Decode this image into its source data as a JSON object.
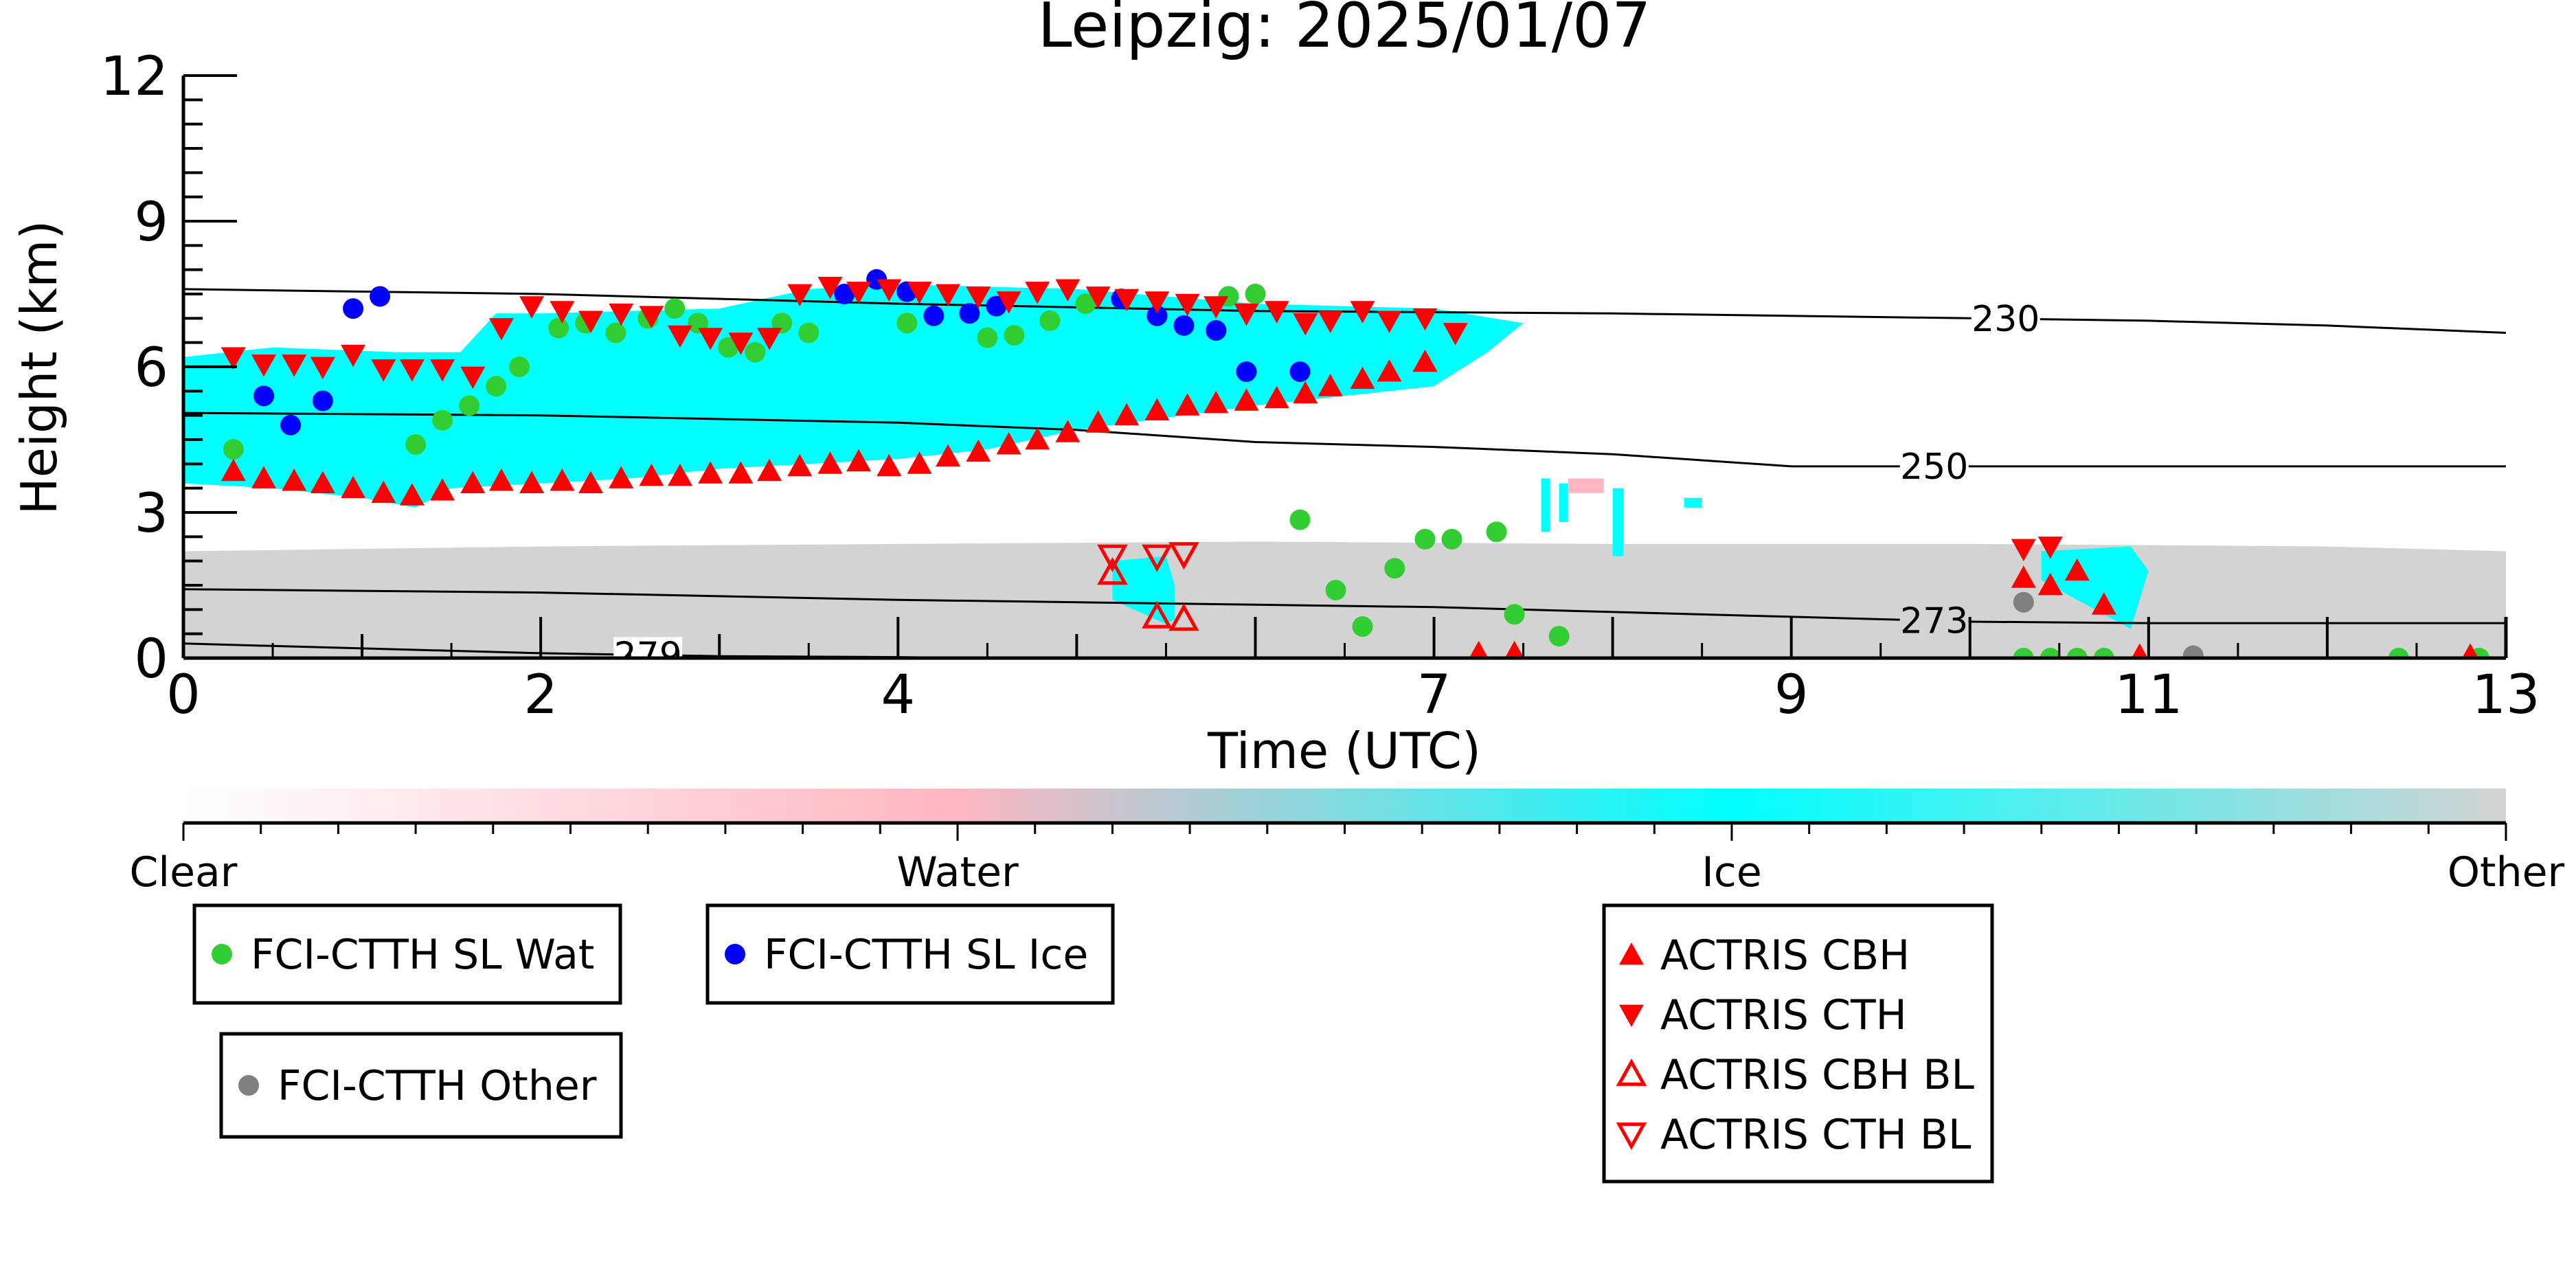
{
  "chart_data": {
    "type": "scatter",
    "title": "Leipzig: 2025/01/07",
    "xlabel": "Time (UTC)",
    "ylabel": "Height (km)",
    "xlim": [
      0,
      13
    ],
    "ylim": [
      0,
      12
    ],
    "x_ticks": [
      0,
      2,
      4,
      7,
      9,
      11,
      13
    ],
    "y_ticks": [
      0,
      3,
      6,
      9,
      12
    ],
    "colorbar": {
      "labels": [
        "Clear",
        "Water",
        "Ice",
        "Other"
      ],
      "colors": [
        "#ffffff",
        "#ffb6c1",
        "#00ffff",
        "#d3d3d3"
      ]
    },
    "contours": [
      {
        "label": "230",
        "x": [
          0,
          2,
          4,
          6,
          8,
          10,
          11,
          12,
          13
        ],
        "y": [
          7.6,
          7.5,
          7.3,
          7.15,
          7.1,
          7.0,
          6.95,
          6.85,
          6.7
        ]
      },
      {
        "label": "250",
        "x": [
          0,
          2,
          4,
          5,
          6,
          7,
          8,
          9,
          10,
          11,
          12,
          13
        ],
        "y": [
          5.05,
          5.0,
          4.85,
          4.7,
          4.45,
          4.35,
          4.2,
          3.95,
          3.95,
          3.95,
          3.95,
          3.95
        ]
      },
      {
        "label": "273",
        "x": [
          0,
          2,
          4,
          6,
          7,
          8,
          9,
          10,
          11,
          12,
          13
        ],
        "y": [
          1.42,
          1.35,
          1.2,
          1.1,
          1.05,
          0.95,
          0.85,
          0.75,
          0.72,
          0.72,
          0.72
        ]
      },
      {
        "label": "279",
        "x": [
          0,
          1,
          2,
          3,
          4,
          4.5
        ],
        "y": [
          0.3,
          0.2,
          0.1,
          0.04,
          0.02,
          0.0
        ]
      }
    ],
    "cloud_regions": [
      {
        "class": "Other",
        "color": "#d3d3d3",
        "x": [
          0,
          1,
          2,
          4,
          6,
          8,
          10,
          12,
          13,
          13,
          0
        ],
        "y": [
          2.2,
          2.25,
          2.3,
          2.35,
          2.4,
          2.35,
          2.35,
          2.3,
          2.2,
          0,
          0
        ]
      },
      {
        "class": "Ice",
        "color": "#00ffff",
        "x": [
          0,
          0.5,
          1.2,
          1.55,
          1.75,
          2,
          3,
          3.5,
          4,
          5,
          6,
          7,
          7.5,
          7.3,
          7,
          6,
          5,
          4.5,
          4,
          3.5,
          3,
          2.5,
          2,
          1.5,
          1.3,
          1,
          0.5,
          0
        ],
        "y": [
          6.2,
          6.4,
          6.3,
          6.3,
          7.1,
          7.1,
          7.2,
          7.6,
          7.7,
          7.6,
          7.3,
          7.2,
          6.9,
          6.3,
          5.6,
          5.2,
          4.7,
          4.3,
          4.1,
          4.0,
          3.9,
          3.7,
          3.6,
          3.5,
          3.1,
          3.3,
          3.5,
          3.6
        ]
      },
      {
        "class": "Ice",
        "color": "#00ffff",
        "x": [
          5.2,
          5.5,
          5.55,
          5.55,
          5.5,
          5.2
        ],
        "y": [
          2.0,
          2.1,
          1.5,
          0.8,
          0.7,
          1.2
        ]
      },
      {
        "class": "Ice",
        "color": "#00ffff",
        "x": [
          10.4,
          10.9,
          11.0,
          10.9,
          10.4
        ],
        "y": [
          2.2,
          2.3,
          1.8,
          0.6,
          1.6
        ]
      },
      {
        "class": "Ice",
        "color": "#00ffff",
        "x": [
          7.6,
          7.65,
          7.65,
          7.6
        ],
        "y": [
          3.7,
          3.7,
          2.6,
          2.6
        ]
      },
      {
        "class": "Ice",
        "color": "#00ffff",
        "x": [
          7.7,
          7.75,
          7.75,
          7.7
        ],
        "y": [
          3.6,
          3.6,
          2.8,
          2.8
        ]
      },
      {
        "class": "Ice",
        "color": "#00ffff",
        "x": [
          8.0,
          8.06,
          8.06,
          8.0
        ],
        "y": [
          3.5,
          3.5,
          2.1,
          2.1
        ]
      },
      {
        "class": "Ice",
        "color": "#00ffff",
        "x": [
          8.4,
          8.5,
          8.5,
          8.4
        ],
        "y": [
          3.3,
          3.3,
          3.1,
          3.1
        ]
      },
      {
        "class": "Water",
        "color": "#ffb6c1",
        "x": [
          7.75,
          7.95,
          7.95,
          7.75
        ],
        "y": [
          3.7,
          3.7,
          3.4,
          3.4
        ]
      }
    ],
    "series": [
      {
        "name": "FCI-CTTH SL Wat",
        "marker": "circle",
        "color": "#32cd32",
        "x": [
          0.28,
          1.3,
          1.45,
          1.6,
          1.75,
          1.88,
          2.1,
          2.25,
          2.42,
          2.6,
          2.75,
          2.88,
          3.05,
          3.2,
          3.35,
          3.5,
          4.05,
          4.5,
          4.65,
          4.85,
          5.05,
          5.85,
          6.0,
          6.25,
          6.45,
          6.6,
          6.78,
          6.95,
          7.1,
          7.35,
          7.45,
          7.7,
          10.3,
          10.45,
          10.6,
          10.75,
          12.4,
          12.85
        ],
        "y": [
          4.3,
          4.4,
          4.9,
          5.2,
          5.6,
          6.0,
          6.8,
          6.9,
          6.7,
          7.0,
          7.2,
          6.9,
          6.4,
          6.3,
          6.9,
          6.7,
          6.9,
          6.6,
          6.65,
          6.95,
          7.3,
          7.45,
          7.5,
          2.85,
          1.4,
          0.65,
          1.85,
          2.45,
          2.45,
          2.6,
          0.9,
          0.45,
          0,
          0,
          0,
          0,
          0,
          0
        ]
      },
      {
        "name": "FCI-CTTH SL Ice",
        "marker": "circle",
        "color": "#0000ff",
        "x": [
          0.45,
          0.6,
          0.78,
          0.95,
          1.1,
          3.7,
          3.88,
          4.05,
          4.2,
          4.4,
          4.55,
          5.25,
          5.45,
          5.6,
          5.78,
          5.95,
          6.25
        ],
        "y": [
          5.4,
          4.8,
          5.3,
          7.2,
          7.45,
          7.5,
          7.8,
          7.55,
          7.05,
          7.1,
          7.25,
          7.4,
          7.05,
          6.85,
          6.75,
          5.9,
          5.9
        ],
        "note": "y-values listed as read from marker centres"
      },
      {
        "name": "FCI-CTTH Other",
        "marker": "circle",
        "color": "#808080",
        "x": [
          10.3,
          11.25
        ],
        "y": [
          1.15,
          0.05
        ]
      },
      {
        "name": "ACTRIS CBH",
        "marker": "triangle-up",
        "color": "#ff0000",
        "x": [
          0.28,
          0.45,
          0.62,
          0.78,
          0.95,
          1.12,
          1.28,
          1.45,
          1.62,
          1.78,
          1.95,
          2.12,
          2.28,
          2.45,
          2.62,
          2.78,
          2.95,
          3.12,
          3.28,
          3.45,
          3.62,
          3.78,
          3.95,
          4.12,
          4.28,
          4.45,
          4.62,
          4.78,
          4.95,
          5.12,
          5.28,
          5.45,
          5.62,
          5.78,
          5.95,
          6.12,
          6.28,
          6.42,
          6.6,
          6.75,
          6.95,
          7.25,
          7.45,
          10.3,
          10.45,
          10.6,
          10.75,
          10.95,
          12.8
        ],
        "y": [
          3.85,
          3.7,
          3.65,
          3.6,
          3.5,
          3.4,
          3.35,
          3.45,
          3.6,
          3.65,
          3.6,
          3.65,
          3.6,
          3.7,
          3.75,
          3.75,
          3.8,
          3.8,
          3.85,
          3.95,
          4.0,
          4.05,
          3.95,
          4.0,
          4.15,
          4.25,
          4.4,
          4.5,
          4.65,
          4.85,
          5.0,
          5.1,
          5.2,
          5.25,
          5.3,
          5.35,
          5.45,
          5.6,
          5.75,
          5.9,
          6.1,
          0.1,
          0.1,
          1.65,
          1.5,
          1.8,
          1.1,
          0.05,
          0.05
        ]
      },
      {
        "name": "ACTRIS CTH",
        "marker": "triangle-down",
        "color": "#ff0000",
        "x": [
          0.28,
          0.45,
          0.62,
          0.78,
          0.95,
          1.12,
          1.28,
          1.45,
          1.62,
          1.78,
          1.95,
          2.12,
          2.28,
          2.45,
          2.62,
          2.78,
          2.95,
          3.12,
          3.28,
          3.45,
          3.62,
          3.78,
          3.95,
          4.12,
          4.28,
          4.45,
          4.62,
          4.78,
          4.95,
          5.12,
          5.28,
          5.45,
          5.62,
          5.78,
          5.95,
          6.12,
          6.28,
          6.42,
          6.6,
          6.75,
          6.95,
          7.12,
          10.3,
          10.45
        ],
        "y": [
          6.2,
          6.05,
          6.05,
          6.0,
          6.25,
          5.95,
          5.95,
          5.95,
          5.8,
          6.8,
          7.25,
          7.15,
          6.95,
          7.1,
          7.05,
          6.65,
          6.6,
          6.5,
          6.6,
          7.5,
          7.65,
          7.55,
          7.6,
          7.55,
          7.5,
          7.45,
          7.35,
          7.55,
          7.6,
          7.45,
          7.4,
          7.35,
          7.3,
          7.25,
          7.1,
          7.15,
          6.9,
          6.95,
          7.15,
          6.95,
          7.0,
          6.7,
          2.25,
          2.3
        ]
      },
      {
        "name": "ACTRIS CBH BL",
        "marker": "triangle-up-open",
        "color": "#ff0000",
        "x": [
          5.2,
          5.45,
          5.6
        ],
        "y": [
          1.75,
          0.85,
          0.8
        ]
      },
      {
        "name": "ACTRIS CTH BL",
        "marker": "triangle-down-open",
        "color": "#ff0000",
        "x": [
          5.2,
          5.45,
          5.6
        ],
        "y": [
          2.1,
          2.1,
          2.15
        ]
      }
    ]
  },
  "legends": [
    {
      "items": [
        {
          "label": "FCI-CTTH SL Wat",
          "marker": "circle",
          "color": "#32cd32"
        }
      ]
    },
    {
      "items": [
        {
          "label": "FCI-CTTH SL Ice",
          "marker": "circle",
          "color": "#0000ff"
        }
      ]
    },
    {
      "items": [
        {
          "label": "FCI-CTTH Other",
          "marker": "circle",
          "color": "#808080"
        }
      ]
    },
    {
      "items": [
        {
          "label": "ACTRIS CBH",
          "marker": "triangle-up",
          "color": "#ff0000"
        },
        {
          "label": "ACTRIS CTH",
          "marker": "triangle-down",
          "color": "#ff0000"
        },
        {
          "label": "ACTRIS CBH BL",
          "marker": "triangle-up-open",
          "color": "#ff0000"
        },
        {
          "label": "ACTRIS CTH BL",
          "marker": "triangle-down-open",
          "color": "#ff0000"
        }
      ]
    }
  ]
}
